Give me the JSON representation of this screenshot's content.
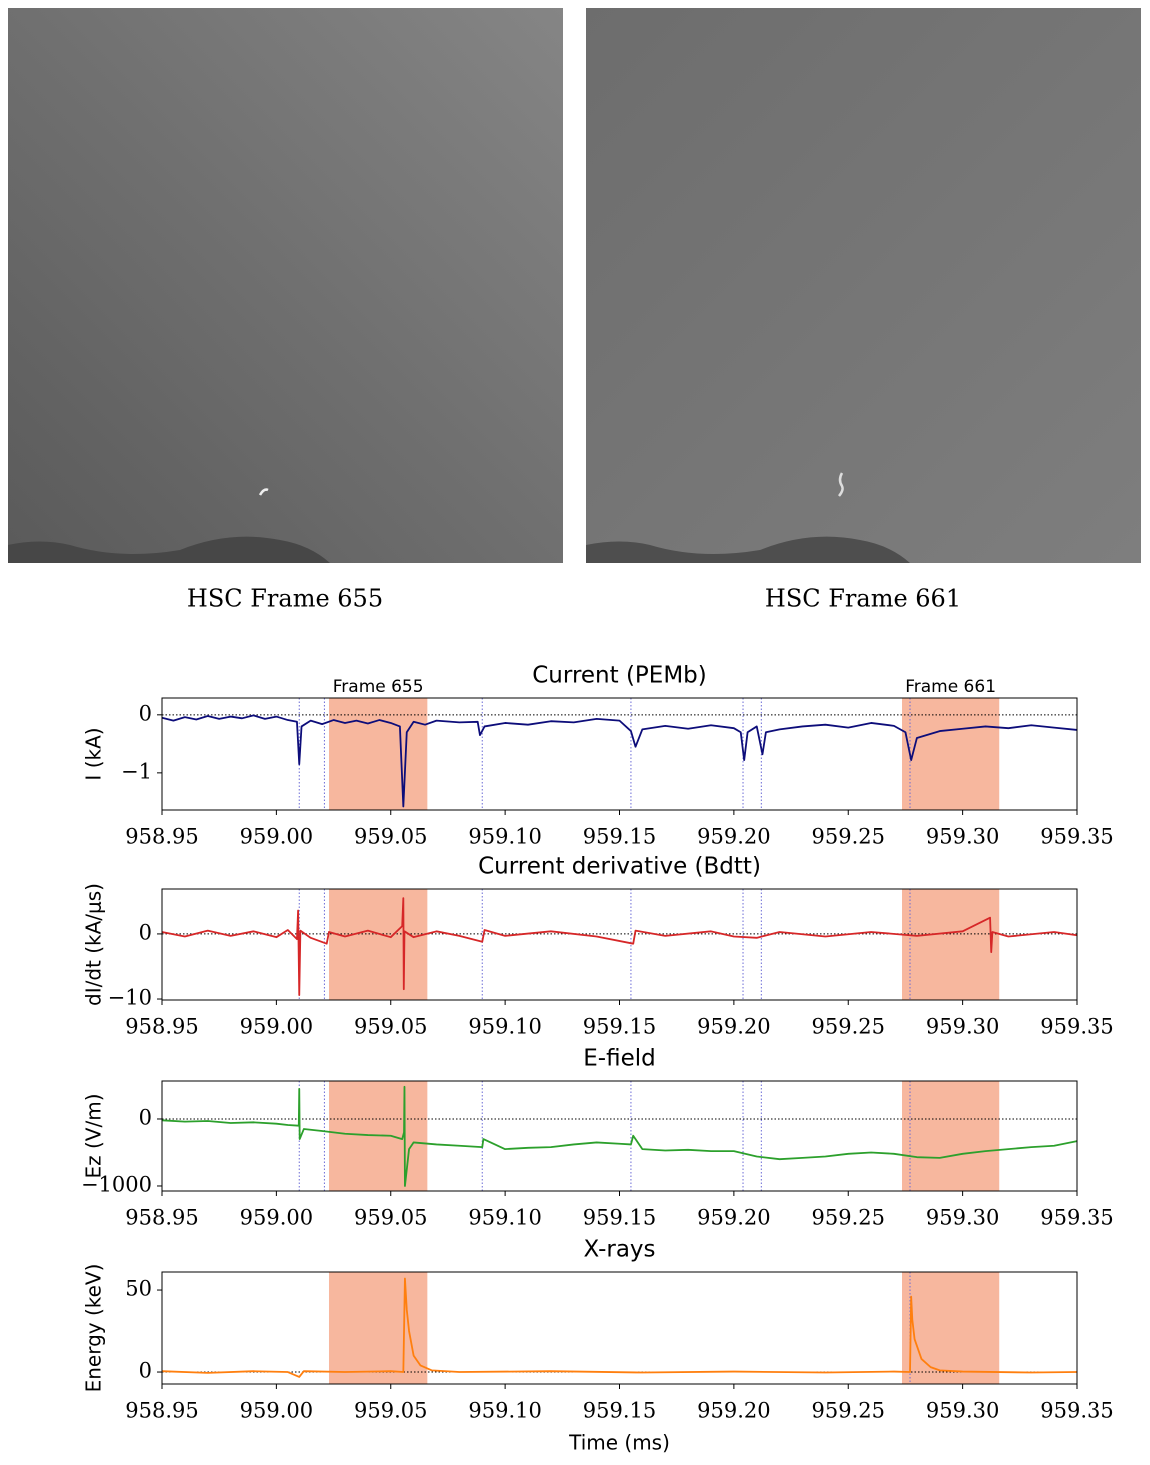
{
  "images": [
    {
      "caption": "HSC Frame 655"
    },
    {
      "caption": "HSC Frame 661"
    }
  ],
  "chart_data": [
    {
      "type": "line",
      "title": "Current (PEMb)",
      "ylabel": "I (kA)",
      "color": "#0d0d7a",
      "xlim": [
        958.95,
        959.35
      ],
      "ylim": [
        -1.64,
        0.29
      ],
      "xticks": [
        958.95,
        {
          "value": 959,
          "label": "959.00"
        },
        959.05,
        {
          "value": 959.1,
          "label": "959.10"
        },
        959.15,
        {
          "value": 959.2,
          "label": "959.20"
        },
        959.25,
        {
          "value": 959.3,
          "label": "959.30"
        },
        959.35
      ],
      "yticks": [
        0,
        {
          "value": -1,
          "label": "−1"
        }
      ],
      "spans": [
        [
          959.023,
          959.066
        ],
        [
          959.2735,
          959.316
        ]
      ],
      "span_color": "#f7b79e",
      "span_labels": [
        "Frame 655",
        "Frame 661"
      ],
      "vlines": [
        959.01,
        959.021,
        959.09,
        959.155,
        959.204,
        959.212,
        959.277
      ],
      "zero_line": true,
      "x": [
        958.95,
        958.955,
        958.96,
        958.965,
        958.97,
        958.975,
        958.98,
        958.985,
        958.99,
        958.995,
        959.0,
        959.005,
        959.009,
        959.01,
        959.011,
        959.015,
        959.02,
        959.025,
        959.03,
        959.035,
        959.04,
        959.045,
        959.05,
        959.054,
        959.0555,
        959.057,
        959.06,
        959.065,
        959.07,
        959.08,
        959.088,
        959.089,
        959.091,
        959.1,
        959.11,
        959.12,
        959.13,
        959.14,
        959.15,
        959.155,
        959.157,
        959.16,
        959.17,
        959.18,
        959.19,
        959.2,
        959.203,
        959.2045,
        959.206,
        959.21,
        959.2125,
        959.214,
        959.22,
        959.23,
        959.24,
        959.25,
        959.26,
        959.27,
        959.275,
        959.2775,
        959.28,
        959.29,
        959.3,
        959.31,
        959.32,
        959.33,
        959.34,
        959.35
      ],
      "values": [
        -0.05,
        -0.1,
        -0.04,
        -0.08,
        -0.02,
        -0.07,
        -0.03,
        -0.06,
        -0.01,
        -0.07,
        -0.03,
        -0.09,
        -0.12,
        -0.85,
        -0.2,
        -0.1,
        -0.16,
        -0.09,
        -0.14,
        -0.1,
        -0.15,
        -0.09,
        -0.14,
        -0.2,
        -1.58,
        -0.3,
        -0.12,
        -0.17,
        -0.1,
        -0.13,
        -0.12,
        -0.35,
        -0.2,
        -0.14,
        -0.17,
        -0.11,
        -0.13,
        -0.07,
        -0.1,
        -0.28,
        -0.55,
        -0.25,
        -0.19,
        -0.24,
        -0.18,
        -0.23,
        -0.3,
        -0.78,
        -0.3,
        -0.2,
        -0.68,
        -0.3,
        -0.25,
        -0.2,
        -0.17,
        -0.22,
        -0.14,
        -0.19,
        -0.3,
        -0.78,
        -0.4,
        -0.28,
        -0.24,
        -0.2,
        -0.23,
        -0.18,
        -0.22,
        -0.26
      ]
    },
    {
      "type": "line",
      "title": "Current derivative (Bdtt)",
      "ylabel": "dI/dt (kA/μs)",
      "color": "#d62728",
      "xlim": [
        958.95,
        959.35
      ],
      "ylim": [
        -10.15,
        6.9
      ],
      "xticks": [
        958.95,
        {
          "value": 959,
          "label": "959.00"
        },
        959.05,
        {
          "value": 959.1,
          "label": "959.10"
        },
        959.15,
        {
          "value": 959.2,
          "label": "959.20"
        },
        959.25,
        {
          "value": 959.3,
          "label": "959.30"
        },
        959.35
      ],
      "yticks": [
        0,
        {
          "value": -10,
          "label": "−10"
        }
      ],
      "spans": [
        [
          959.023,
          959.066
        ],
        [
          959.2735,
          959.316
        ]
      ],
      "span_color": "#f7b79e",
      "vlines": [
        959.01,
        959.021,
        959.09,
        959.155,
        959.204,
        959.212,
        959.277
      ],
      "zero_line": true,
      "x": [
        958.95,
        958.96,
        958.97,
        958.98,
        958.99,
        959.0,
        959.005,
        959.009,
        959.0095,
        959.01,
        959.0105,
        959.015,
        959.022,
        959.023,
        959.03,
        959.04,
        959.05,
        959.055,
        959.0555,
        959.0557,
        959.056,
        959.06,
        959.07,
        959.08,
        959.09,
        959.091,
        959.1,
        959.12,
        959.14,
        959.156,
        959.157,
        959.17,
        959.19,
        959.2,
        959.21,
        959.22,
        959.24,
        959.26,
        959.28,
        959.3,
        959.312,
        959.3125,
        959.313,
        959.32,
        959.34,
        959.35
      ],
      "values": [
        0.3,
        -0.4,
        0.5,
        -0.3,
        0.4,
        -0.5,
        0.6,
        -0.8,
        3.6,
        -9.4,
        0.5,
        -0.6,
        -1.5,
        0.3,
        -0.4,
        0.5,
        -0.5,
        1.2,
        5.5,
        -8.5,
        0.4,
        -0.5,
        0.4,
        -0.3,
        -1.2,
        0.6,
        -0.3,
        0.4,
        -0.4,
        -1.5,
        0.5,
        -0.3,
        0.4,
        -0.4,
        -0.6,
        0.3,
        -0.4,
        0.3,
        -0.3,
        0.4,
        2.5,
        -2.8,
        0.3,
        -0.4,
        0.3,
        -0.2
      ]
    },
    {
      "type": "line",
      "title": "E-field",
      "ylabel": "Ez (V/m)",
      "color": "#2ca02c",
      "xlim": [
        958.95,
        959.35
      ],
      "ylim": [
        -1075,
        567
      ],
      "xticks": [
        958.95,
        {
          "value": 959,
          "label": "959.00"
        },
        959.05,
        {
          "value": 959.1,
          "label": "959.10"
        },
        959.15,
        {
          "value": 959.2,
          "label": "959.20"
        },
        959.25,
        {
          "value": 959.3,
          "label": "959.30"
        },
        959.35
      ],
      "yticks": [
        0,
        {
          "value": -1000,
          "label": "−1000"
        }
      ],
      "spans": [
        [
          959.023,
          959.066
        ],
        [
          959.2735,
          959.316
        ]
      ],
      "span_color": "#f7b79e",
      "vlines": [
        959.01,
        959.021,
        959.09,
        959.155,
        959.204,
        959.212,
        959.277
      ],
      "zero_line": true,
      "x": [
        958.95,
        958.96,
        958.97,
        958.98,
        958.99,
        959.0,
        959.005,
        959.0098,
        959.01,
        959.0102,
        959.012,
        959.02,
        959.03,
        959.04,
        959.05,
        959.055,
        959.0558,
        959.056,
        959.0562,
        959.058,
        959.06,
        959.07,
        959.08,
        959.09,
        959.0905,
        959.1,
        959.11,
        959.12,
        959.13,
        959.14,
        959.15,
        959.155,
        959.156,
        959.16,
        959.17,
        959.18,
        959.19,
        959.2,
        959.21,
        959.22,
        959.23,
        959.24,
        959.25,
        959.26,
        959.27,
        959.28,
        959.29,
        959.3,
        959.31,
        959.32,
        959.33,
        959.34,
        959.35
      ],
      "values": [
        -20,
        -40,
        -30,
        -60,
        -50,
        -70,
        -90,
        -100,
        450,
        -300,
        -150,
        -180,
        -220,
        -240,
        -250,
        -300,
        -200,
        480,
        -1000,
        -450,
        -350,
        -380,
        -400,
        -420,
        -300,
        -450,
        -430,
        -420,
        -380,
        -350,
        -370,
        -380,
        -250,
        -450,
        -470,
        -460,
        -480,
        -480,
        -560,
        -600,
        -580,
        -560,
        -520,
        -500,
        -520,
        -570,
        -580,
        -520,
        -480,
        -450,
        -420,
        -400,
        -330
      ]
    },
    {
      "type": "line",
      "title": "X-rays",
      "ylabel": "Energy (keV)",
      "xlabel": "Time (ms)",
      "color": "#ff7f0e",
      "xlim": [
        958.95,
        959.35
      ],
      "ylim": [
        -7.3,
        61
      ],
      "xticks": [
        958.95,
        {
          "value": 959,
          "label": "959.00"
        },
        959.05,
        {
          "value": 959.1,
          "label": "959.10"
        },
        959.15,
        {
          "value": 959.2,
          "label": "959.20"
        },
        959.25,
        {
          "value": 959.3,
          "label": "959.30"
        },
        959.35
      ],
      "yticks": [
        0,
        50
      ],
      "spans": [
        [
          959.023,
          959.066
        ],
        [
          959.2735,
          959.316
        ]
      ],
      "span_color": "#f7b79e",
      "vlines": [
        959.277
      ],
      "zero_line": true,
      "x": [
        958.95,
        958.97,
        958.99,
        959.005,
        959.01,
        959.012,
        959.03,
        959.05,
        959.0555,
        959.0562,
        959.057,
        959.058,
        959.06,
        959.063,
        959.068,
        959.08,
        959.12,
        959.16,
        959.2,
        959.24,
        959.27,
        959.277,
        959.2775,
        959.278,
        959.279,
        959.282,
        959.286,
        959.29,
        959.3,
        959.33,
        959.35
      ],
      "values": [
        0.5,
        -0.5,
        0.5,
        0,
        -3,
        0.5,
        0,
        0.5,
        0,
        57,
        38,
        25,
        10,
        4,
        1,
        0,
        0.5,
        -0.3,
        0.3,
        -0.3,
        0.3,
        0,
        46,
        32,
        20,
        8,
        3,
        1,
        0.3,
        -0.3,
        0
      ]
    }
  ]
}
